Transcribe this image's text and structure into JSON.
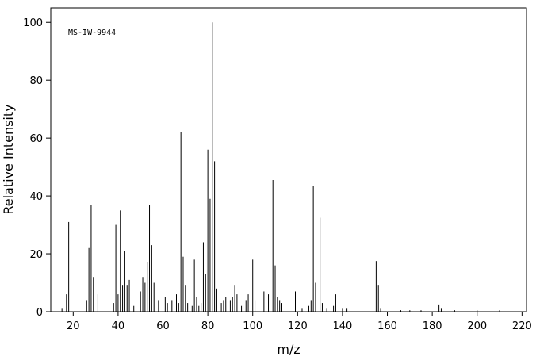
{
  "chart_data": {
    "type": "spectrum",
    "annotation": "MS-IW-9944",
    "xlabel": "m/z",
    "ylabel": "Relative Intensity",
    "x": [
      15,
      17,
      18,
      26,
      27,
      28,
      29,
      31,
      38,
      39,
      40,
      41,
      42,
      43,
      44,
      45,
      47,
      50,
      51,
      52,
      53,
      54,
      55,
      56,
      58,
      60,
      61,
      62,
      64,
      66,
      67,
      68,
      69,
      70,
      71,
      73,
      74,
      75,
      76,
      77,
      78,
      79,
      80,
      81,
      82,
      83,
      84,
      86,
      87,
      88,
      90,
      91,
      92,
      93,
      95,
      97,
      98,
      100,
      101,
      105,
      107,
      109,
      110,
      111,
      112,
      113,
      119,
      122,
      125,
      126,
      127,
      128,
      130,
      131,
      133,
      136,
      137,
      140,
      142,
      155,
      156,
      157,
      166,
      170,
      175,
      183,
      184,
      190,
      200,
      210
    ],
    "values": [
      1,
      6,
      31,
      4,
      22,
      37,
      12,
      6,
      3,
      30,
      6,
      35,
      9,
      21,
      9,
      11,
      2,
      7,
      12,
      10,
      17,
      37,
      23,
      10,
      4,
      7,
      5,
      3,
      4,
      6,
      3,
      62,
      19,
      9,
      3,
      2,
      18,
      5,
      2,
      3,
      24,
      13,
      56,
      39,
      100,
      52,
      8,
      3,
      4,
      5,
      4,
      5,
      9,
      6,
      2,
      4,
      6,
      18,
      4,
      7,
      6,
      45.5,
      16,
      5,
      4,
      3,
      7,
      1,
      2,
      4,
      43.5,
      10,
      32.5,
      3,
      1,
      2,
      6,
      1,
      1,
      17.5,
      9,
      1,
      0.5,
      0.5,
      0.5,
      2.5,
      1,
      0.5,
      0.5,
      0.5
    ],
    "color": "#000000",
    "xlim": [
      10,
      222
    ],
    "xticks": [
      20,
      40,
      60,
      80,
      100,
      120,
      140,
      160,
      180,
      200,
      220
    ],
    "ylim": [
      0,
      105
    ],
    "yticks": [
      0,
      20,
      40,
      60,
      80,
      100
    ]
  }
}
